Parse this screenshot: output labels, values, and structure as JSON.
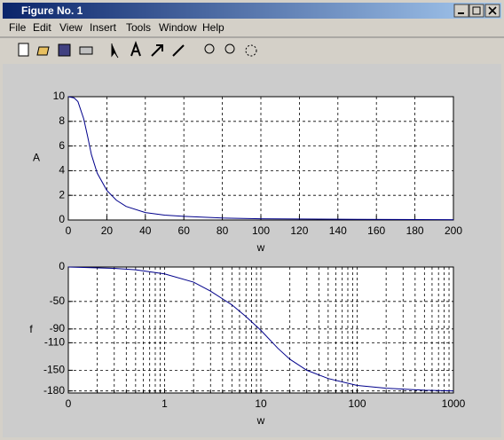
{
  "window": {
    "title": "Figure No. 1",
    "menu": [
      "File",
      "Edit",
      "View",
      "Insert",
      "Tools",
      "Window",
      "Help"
    ]
  },
  "chart_data": [
    {
      "type": "line",
      "xlabel": "w",
      "ylabel": "A",
      "xscale": "linear",
      "x": [
        0,
        3,
        5,
        8,
        10,
        12,
        15,
        20,
        25,
        30,
        40,
        50,
        60,
        80,
        100,
        150,
        200
      ],
      "series": [
        {
          "color": "#00008b",
          "values": [
            10,
            9.9,
            9.6,
            8.2,
            6.8,
            5.3,
            3.8,
            2.4,
            1.6,
            1.1,
            0.6,
            0.4,
            0.3,
            0.16,
            0.1,
            0.05,
            0.03
          ]
        }
      ],
      "xlim": [
        0,
        200
      ],
      "xticks": [
        0,
        20,
        40,
        60,
        80,
        100,
        120,
        140,
        160,
        180,
        200
      ],
      "ylim": [
        0,
        10
      ],
      "yticks": [
        0,
        2,
        4,
        6,
        8,
        10
      ],
      "grid": true
    },
    {
      "type": "line",
      "xlabel": "w",
      "ylabel": "f",
      "xscale": "log",
      "x": [
        0.1,
        0.3,
        0.5,
        1,
        2,
        3,
        5,
        7,
        10,
        15,
        20,
        30,
        50,
        100,
        200,
        500,
        1000
      ],
      "series": [
        {
          "color": "#00008b",
          "values": [
            0,
            -2,
            -4,
            -10,
            -22,
            -35,
            -55,
            -72,
            -92,
            -118,
            -134,
            -150,
            -162,
            -172,
            -176,
            -179,
            -180
          ]
        }
      ],
      "xlim": [
        0.1,
        1000
      ],
      "xticks": [
        {
          "value": 0.1,
          "label": "0"
        },
        1,
        10,
        100,
        1000
      ],
      "xminorticks": [
        0.2,
        0.3,
        0.4,
        0.5,
        0.6,
        0.7,
        0.8,
        0.9,
        2,
        3,
        4,
        5,
        6,
        7,
        8,
        9,
        20,
        30,
        40,
        50,
        60,
        70,
        80,
        90,
        200,
        300,
        400,
        500,
        600,
        700,
        800,
        900
      ],
      "ylim": [
        -183,
        0
      ],
      "yticks": [
        0,
        -50,
        -90,
        -110,
        -150,
        -180
      ],
      "grid": true
    }
  ]
}
